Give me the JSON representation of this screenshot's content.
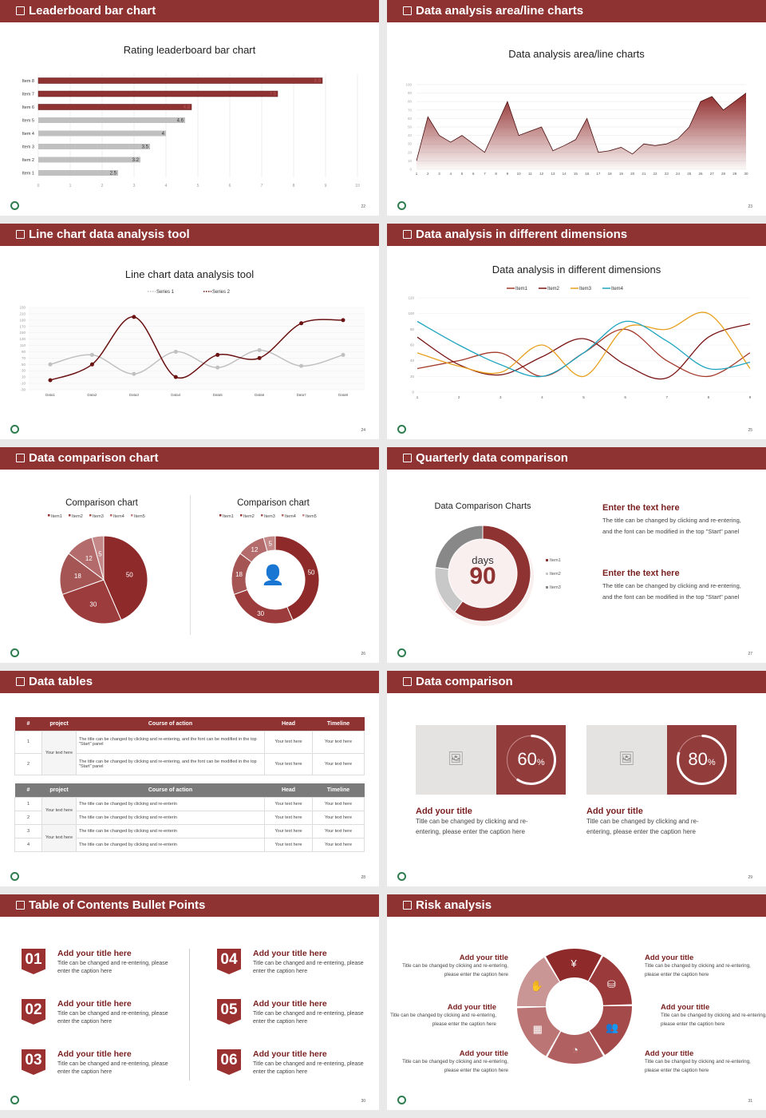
{
  "colors": {
    "brand": "#8f3232",
    "gray": "#c0c0c0",
    "dark_gray": "#888888",
    "item1": "#a33a2a",
    "item2": "#7a1414",
    "item3": "#e8a020",
    "item4": "#1fa5c0"
  },
  "slides": [
    {
      "header": "Leaderboard bar chart",
      "page": "22"
    },
    {
      "header": "Data analysis area/line charts",
      "page": "23"
    },
    {
      "header": "Line chart data analysis tool",
      "page": "24"
    },
    {
      "header": "Data analysis in different dimensions",
      "page": "25"
    },
    {
      "header": "Data comparison chart",
      "page": "26"
    },
    {
      "header": "Quarterly data comparison",
      "page": "27"
    },
    {
      "header": "Data tables",
      "page": "28"
    },
    {
      "header": "Data comparison",
      "page": "29"
    },
    {
      "header": "Table of Contents Bullet Points",
      "page": "30"
    },
    {
      "header": "Risk analysis",
      "page": "31"
    }
  ],
  "chart_data": [
    {
      "type": "bar",
      "orientation": "horizontal",
      "title": "Rating leaderboard bar chart",
      "categories": [
        "Item 8",
        "Item 7",
        "Item 6",
        "Item 5",
        "Item 4",
        "Item 3",
        "Item 2",
        "Item 1"
      ],
      "values": [
        8.9,
        7.5,
        4.8,
        4.6,
        4,
        3.5,
        3.2,
        2.5
      ],
      "highlight_top": 3,
      "xlim": [
        0,
        10
      ],
      "xticks": [
        "0",
        "1",
        "2",
        "3",
        "4",
        "5",
        "6",
        "7",
        "8",
        "9",
        "10"
      ],
      "grid": true
    },
    {
      "type": "area",
      "title": "Data analysis area/line charts",
      "x": [
        "1",
        "2",
        "3",
        "4",
        "5",
        "6",
        "7",
        "8",
        "9",
        "10",
        "11",
        "12",
        "13",
        "14",
        "15",
        "16",
        "17",
        "18",
        "19",
        "20",
        "21",
        "22",
        "23",
        "24",
        "25",
        "26",
        "27",
        "28",
        "29",
        "30"
      ],
      "values": [
        10,
        62,
        40,
        32,
        40,
        30,
        20,
        50,
        80,
        40,
        45,
        50,
        22,
        28,
        35,
        60,
        20,
        22,
        26,
        18,
        30,
        28,
        30,
        36,
        50,
        80,
        86,
        70,
        80,
        90
      ],
      "ylim": [
        0,
        100
      ],
      "yticks": [
        "0",
        "10",
        "20",
        "30",
        "40",
        "50",
        "60",
        "70",
        "80",
        "90",
        "100"
      ],
      "grid": true
    },
    {
      "type": "line",
      "title": "Line chart data analysis tool",
      "categories": [
        "Data1",
        "Data2",
        "Data3",
        "Data4",
        "Data5",
        "Data6",
        "Data7",
        "Data8"
      ],
      "series": [
        {
          "name": "Series 1",
          "values": [
            50,
            80,
            20,
            90,
            40,
            95,
            45,
            80
          ]
        },
        {
          "name": "Series 2",
          "values": [
            0,
            50,
            200,
            10,
            80,
            70,
            180,
            190
          ]
        }
      ],
      "ylim": [
        -30,
        230
      ],
      "yticks": [
        "-30",
        "-10",
        "10",
        "30",
        "50",
        "70",
        "90",
        "110",
        "130",
        "150",
        "170",
        "190",
        "210",
        "230"
      ],
      "legend": "top",
      "smooth": true
    },
    {
      "type": "line",
      "title": "Data analysis in different dimensions",
      "categories": [
        "1",
        "2",
        "3",
        "4",
        "5",
        "6",
        "7",
        "8",
        "9"
      ],
      "series": [
        {
          "name": "Item1",
          "values": [
            30,
            40,
            50,
            20,
            50,
            80,
            40,
            20,
            50
          ]
        },
        {
          "name": "Item2",
          "values": [
            70,
            35,
            22,
            45,
            68,
            35,
            18,
            70,
            87
          ]
        },
        {
          "name": "Item3",
          "values": [
            50,
            33,
            25,
            60,
            20,
            82,
            80,
            100,
            30
          ]
        },
        {
          "name": "Item4",
          "values": [
            90,
            60,
            35,
            20,
            50,
            90,
            65,
            30,
            38
          ]
        }
      ],
      "ylim": [
        0,
        120
      ],
      "yticks": [
        "0",
        "20",
        "40",
        "60",
        "80",
        "100",
        "120"
      ],
      "legend": "top",
      "smooth": true
    },
    {
      "type": "pie",
      "title": "Comparison chart",
      "categories": [
        "Item1",
        "Item2",
        "Item3",
        "Item4",
        "Item5"
      ],
      "values": [
        50,
        30,
        18,
        12,
        5
      ],
      "legend": "top"
    },
    {
      "type": "pie",
      "variant": "donut",
      "title": "Comparison chart",
      "categories": [
        "Item1",
        "Item2",
        "Item3",
        "Item4",
        "Item5"
      ],
      "values": [
        50,
        30,
        18,
        12,
        5
      ],
      "legend": "top",
      "center_icon": "person-chat-icon"
    },
    {
      "type": "pie",
      "variant": "donut",
      "title": "Data Comparison Charts",
      "categories": [
        "Item1",
        "Item2",
        "Item3"
      ],
      "values": [
        60,
        17,
        23
      ],
      "center_label": "days",
      "center_value": "90",
      "legend": "right"
    }
  ],
  "quarterly": {
    "blocks": [
      {
        "title": "Enter the text here",
        "body": "The title can be changed by clicking and re-entering, and the font can be modified in the top \"Start\" panel"
      },
      {
        "title": "Enter the text here",
        "body": "The title can be changed by clicking and re-entering, and the font can be modified in the top \"Start\" panel"
      }
    ]
  },
  "tables": {
    "headers": [
      "#",
      "project",
      "Course of action",
      "Head",
      "Timeline"
    ],
    "table1": {
      "rows": [
        {
          "n": "1",
          "action": "The title can be changed by clicking and re-entering, and the font can be modified in the top \"Start\" panel",
          "head": "Your text here",
          "timeline": "Your text here"
        },
        {
          "n": "2",
          "action": "The title can be changed by clicking and re-entering, and the font can be modified in the top \"Start\" panel",
          "head": "Your text here",
          "timeline": "Your text here"
        }
      ],
      "projects": [
        "Your text here"
      ]
    },
    "table2": {
      "rows": [
        {
          "n": "1",
          "action": "The title can be changed by clicking and re-enterin",
          "head": "Your text here",
          "timeline": "Your text here"
        },
        {
          "n": "2",
          "action": "The title can be changed by clicking and re-enterin",
          "head": "Your text here",
          "timeline": "Your text here"
        },
        {
          "n": "3",
          "action": "The title can be changed by clicking and re-enterin",
          "head": "Your text here",
          "timeline": "Your text here"
        },
        {
          "n": "4",
          "action": "The title can be changed by clicking and re-enterin",
          "head": "Your text here",
          "timeline": "Your text here"
        }
      ],
      "projects": [
        "Your text here",
        "Your text here"
      ]
    }
  },
  "comparison": {
    "cards": [
      {
        "percent": 60,
        "label": "60",
        "unit": "%",
        "title": "Add your title",
        "body": "Title can be changed by clicking and re-entering, please enter the caption here",
        "icon": "image-add-icon"
      },
      {
        "percent": 80,
        "label": "80",
        "unit": "%",
        "title": "Add your title",
        "body": "Title can be changed by clicking and re-entering, please enter the caption here",
        "icon": "image-add-icon"
      }
    ]
  },
  "toc": {
    "items": [
      {
        "num": "01",
        "title": "Add your title here",
        "body": "Title can be changed and re-entering, please enter the caption here"
      },
      {
        "num": "02",
        "title": "Add your title here",
        "body": "Title can be changed and re-entering, please enter the caption here"
      },
      {
        "num": "03",
        "title": "Add your title here",
        "body": "Title can be changed and re-entering, please enter the caption here"
      },
      {
        "num": "04",
        "title": "Add your title here",
        "body": "Title can be changed and re-entering, please enter the caption here"
      },
      {
        "num": "05",
        "title": "Add your title here",
        "body": "Title can be changed and re-entering, please enter the caption here"
      },
      {
        "num": "06",
        "title": "Add your title here",
        "body": "Title can be changed and re-entering, please enter the caption here"
      }
    ]
  },
  "risk": {
    "items": [
      {
        "title": "Add your title",
        "body": "Title can be changed by clicking and re-entering, please enter the caption here"
      },
      {
        "title": "Add your title",
        "body": "Title can be changed by clicking and re-entering, please enter the caption here"
      },
      {
        "title": "Add your title",
        "body": "Title can be changed by clicking and re-entering, please enter the caption here"
      },
      {
        "title": "Add your title",
        "body": "Title can be changed by clicking and re-entering, please enter the caption here"
      },
      {
        "title": "Add your title",
        "body": "Title can be changed by clicking and re-entering, please enter the caption here"
      },
      {
        "title": "Add your title",
        "body": "Title can be changed by clicking and re-entering, please enter the caption here"
      }
    ],
    "icons": [
      "money-bag-icon",
      "coins-icon",
      "users-icon",
      "pie-chart-icon",
      "buildings-icon",
      "hand-money-icon"
    ]
  }
}
